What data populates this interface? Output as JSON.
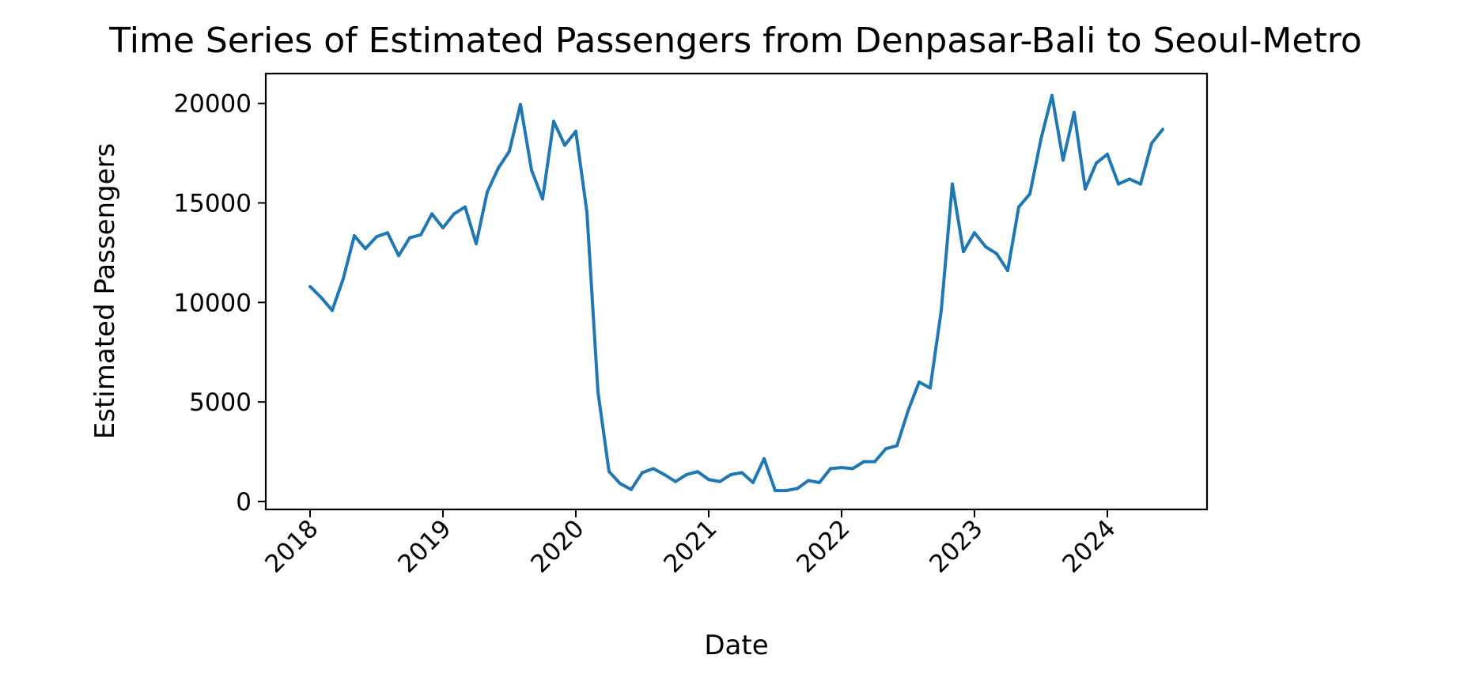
{
  "chart_data": {
    "type": "line",
    "title": "Time Series of Estimated Passengers from Denpasar-Bali to Seoul-Metro",
    "xlabel": "Date",
    "ylabel": "Estimated Passengers",
    "grid": false,
    "legend": "none",
    "xlim": [
      "2017-09",
      "2024-10"
    ],
    "ylim": [
      -400,
      21500
    ],
    "x_ticks": [
      "2018",
      "2019",
      "2020",
      "2021",
      "2022",
      "2023",
      "2024"
    ],
    "y_ticks": [
      0,
      5000,
      10000,
      15000,
      20000
    ],
    "y_tick_labels": [
      "0",
      "5000",
      "10000",
      "15000",
      "20000"
    ],
    "series": [
      {
        "color": "#1f77b4",
        "x": [
          "2018-01",
          "2018-02",
          "2018-03",
          "2018-04",
          "2018-05",
          "2018-06",
          "2018-07",
          "2018-08",
          "2018-09",
          "2018-10",
          "2018-11",
          "2018-12",
          "2019-01",
          "2019-02",
          "2019-03",
          "2019-04",
          "2019-05",
          "2019-06",
          "2019-07",
          "2019-08",
          "2019-09",
          "2019-10",
          "2019-11",
          "2019-12",
          "2020-01",
          "2020-02",
          "2020-03",
          "2020-04",
          "2020-05",
          "2020-06",
          "2020-07",
          "2020-08",
          "2020-09",
          "2020-10",
          "2020-11",
          "2020-12",
          "2021-01",
          "2021-02",
          "2021-03",
          "2021-04",
          "2021-05",
          "2021-06",
          "2021-07",
          "2021-08",
          "2021-09",
          "2021-10",
          "2021-11",
          "2021-12",
          "2022-01",
          "2022-02",
          "2022-03",
          "2022-04",
          "2022-05",
          "2022-06",
          "2022-07",
          "2022-08",
          "2022-09",
          "2022-10",
          "2022-11",
          "2022-12",
          "2023-01",
          "2023-02",
          "2023-03",
          "2023-04",
          "2023-05",
          "2023-06",
          "2023-07",
          "2023-08",
          "2023-09",
          "2023-10",
          "2023-11",
          "2023-12",
          "2024-01",
          "2024-02",
          "2024-03",
          "2024-04",
          "2024-05",
          "2024-06"
        ],
        "values": [
          10800,
          10250,
          9600,
          11200,
          13350,
          12700,
          13300,
          13500,
          12350,
          13250,
          13400,
          14450,
          13750,
          14450,
          14800,
          12950,
          15550,
          16750,
          17600,
          19950,
          16650,
          15200,
          19100,
          17900,
          18600,
          14550,
          5500,
          1500,
          900,
          600,
          1450,
          1650,
          1350,
          1000,
          1350,
          1500,
          1100,
          1000,
          1350,
          1450,
          950,
          2150,
          550,
          550,
          650,
          1050,
          950,
          1650,
          1700,
          1650,
          2000,
          2000,
          2650,
          2800,
          4550,
          6000,
          5700,
          9600,
          15950,
          12550,
          13500,
          12800,
          12450,
          11600,
          14800,
          15450,
          18200,
          20400,
          17150,
          19550,
          15700,
          17000,
          17450,
          15950,
          16200,
          15950,
          18000,
          18700
        ]
      }
    ]
  }
}
